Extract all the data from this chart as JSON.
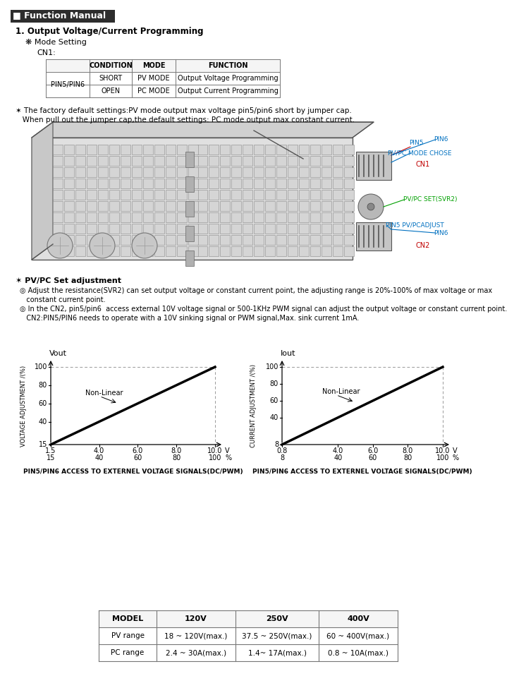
{
  "title": "Function Manual",
  "section1_title": "1. Output Voltage/Current Programming",
  "mode_setting": "Mode Setting",
  "cn1_label": "CN1:",
  "table1_headers": [
    "",
    "CONDITION",
    "MODE",
    "FUNCTION"
  ],
  "table1_row1": [
    "PIN5/PIN6",
    "SHORT",
    "PV MODE",
    "Output Voltage Programming"
  ],
  "table1_row2": [
    "",
    "OPEN",
    "PC MODE",
    "Output Current Programming"
  ],
  "note1_line1": "✶ The factory default settings:PV mode output max voltage pin5/pin6 short by jumper cap.",
  "note1_line2": "   When pull out the jumper cap,the default settings: PC mode output max constant current.",
  "note2_title": "✶ PV/PC Set adjustment",
  "note2_a1": "◎ Adjust the resistance(SVR2) can set output voltage or constant current point, the adjusting range is 20%-100% of max voltage or max",
  "note2_a2": "   constant current point.",
  "note2_b1": "◎ In the CN2, pin5/pin6  access external 10V voltage signal or 500-1KHz PWM signal can adjust the output voltage or constant current point.",
  "note2_b2": "   CN2:PIN5/PIN6 needs to operate with a 10V sinking signal or PWM signal,Max. sink current 1mA.",
  "graph1_xlabel_top": "Vout",
  "graph1_ylabel": "VOLTAGE ADJUSTMENT /(%)",
  "graph1_x_ticks_top": [
    "1.5",
    "4",
    "6",
    "8",
    "10"
  ],
  "graph1_x_ticks_bottom": [
    "15",
    "40",
    "60",
    "80",
    "100"
  ],
  "graph1_x_units": [
    "V",
    "%"
  ],
  "graph1_y_ticks": [
    "15",
    "40",
    "60",
    "80",
    "100"
  ],
  "graph1_nonlinear_text": "Non-Linear",
  "graph1_caption": "PIN5/PIN6 ACCESS TO EXTERNEL VOLTAGE SIGNALS(DC/PWM)",
  "graph2_xlabel_top": "Iout",
  "graph2_ylabel": "CURRENT ADJUSTMENT /(%)",
  "graph2_x_ticks_top": [
    "0.8",
    "4",
    "6",
    "8",
    "10"
  ],
  "graph2_x_ticks_bottom": [
    "8",
    "40",
    "60",
    "80",
    "100"
  ],
  "graph2_x_units": [
    "V",
    "%"
  ],
  "graph2_y_ticks": [
    "8",
    "40",
    "60",
    "80",
    "100"
  ],
  "graph2_nonlinear_text": "Non-Linear",
  "graph2_caption": "PIN5/PIN6 ACCESS TO EXTERNEL VOLTAGE SIGNALS(DC/PWM)",
  "table2_headers": [
    "MODEL",
    "120V",
    "250V",
    "400V"
  ],
  "table2_rows": [
    [
      "PV range",
      "18 ~ 120V(max.)",
      "37.5 ~ 250V(max.)",
      "60 ~ 400V(max.)"
    ],
    [
      "PC range",
      "2.4 ~ 30A(max.)",
      "1.4~ 17A(max.)",
      "0.8 ~ 10A(max.)"
    ]
  ],
  "bg_color": "#ffffff"
}
